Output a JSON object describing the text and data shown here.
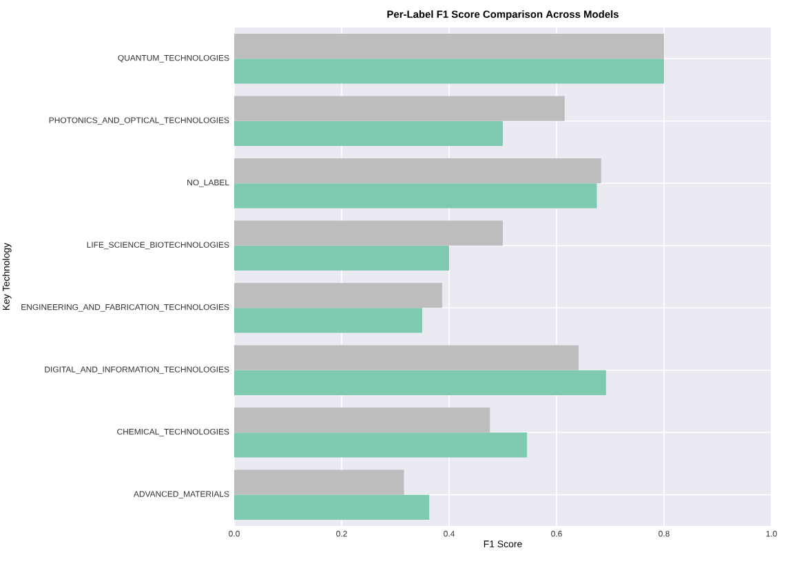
{
  "chart_data": {
    "type": "bar",
    "orientation": "horizontal",
    "title": "Per-Label F1 Score Comparison Across Models",
    "xlabel": "F1 Score",
    "ylabel": "Key Technology",
    "categories": [
      "QUANTUM_TECHNOLOGIES",
      "PHOTONICS_AND_OPTICAL_TECHNOLOGIES",
      "NO_LABEL",
      "LIFE_SCIENCE_BIOTECHNOLOGIES",
      "ENGINEERING_AND_FABRICATION_TECHNOLOGIES",
      "DIGITAL_AND_INFORMATION_TECHNOLOGIES",
      "CHEMICAL_TECHNOLOGIES",
      "ADVANCED_MATERIALS"
    ],
    "series": [
      {
        "color": "#7fc9b1",
        "values": [
          0.8,
          0.5,
          0.675,
          0.4,
          0.35,
          0.692,
          0.545,
          0.363
        ]
      },
      {
        "color": "#bdbdbd",
        "values": [
          0.8,
          0.615,
          0.683,
          0.5,
          0.387,
          0.641,
          0.476,
          0.316
        ]
      }
    ],
    "xlim": [
      0,
      1
    ],
    "xticks": [
      {
        "value": 0,
        "label": "0.0"
      },
      {
        "value": 0.2,
        "label": "0.2"
      },
      {
        "value": 0.4,
        "label": "0.4"
      },
      {
        "value": 0.6,
        "label": "0.6"
      },
      {
        "value": 0.8,
        "label": "0.8"
      },
      {
        "value": 1,
        "label": "1.0"
      }
    ],
    "grid": true
  }
}
